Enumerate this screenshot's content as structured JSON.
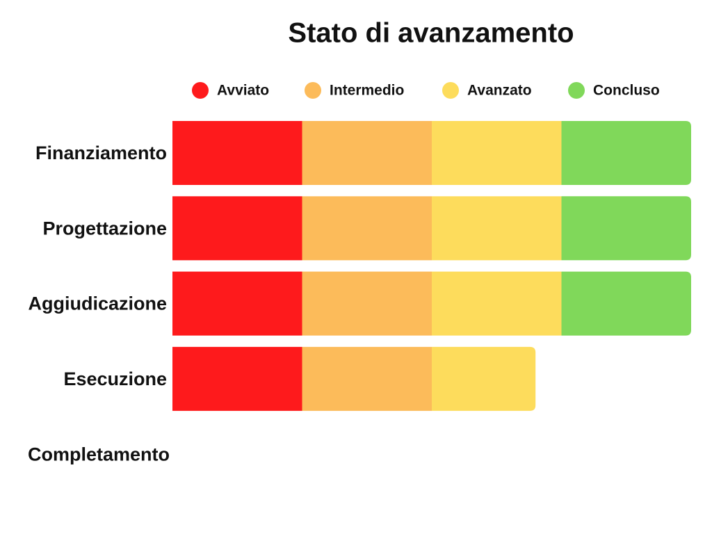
{
  "chart_data": {
    "type": "stacked-bar-horizontal",
    "title": "Stato di avanzamento",
    "categories": [
      "Finanziamento",
      "Progettazione",
      "Aggiudicazione",
      "Esecuzione",
      "Completamento"
    ],
    "series": [
      {
        "name": "Avviato",
        "color": "#fe1a1c",
        "values": [
          1,
          1,
          1,
          1,
          0
        ]
      },
      {
        "name": "Intermedio",
        "color": "#fcbb5a",
        "values": [
          1,
          1,
          1,
          1,
          0
        ]
      },
      {
        "name": "Avanzato",
        "color": "#fddc5c",
        "values": [
          1,
          1,
          1,
          0.8,
          0
        ]
      },
      {
        "name": "Concluso",
        "color": "#80d85a",
        "values": [
          1,
          1,
          1,
          0,
          0
        ]
      }
    ],
    "xlim": [
      0,
      4
    ],
    "legend": "top"
  }
}
